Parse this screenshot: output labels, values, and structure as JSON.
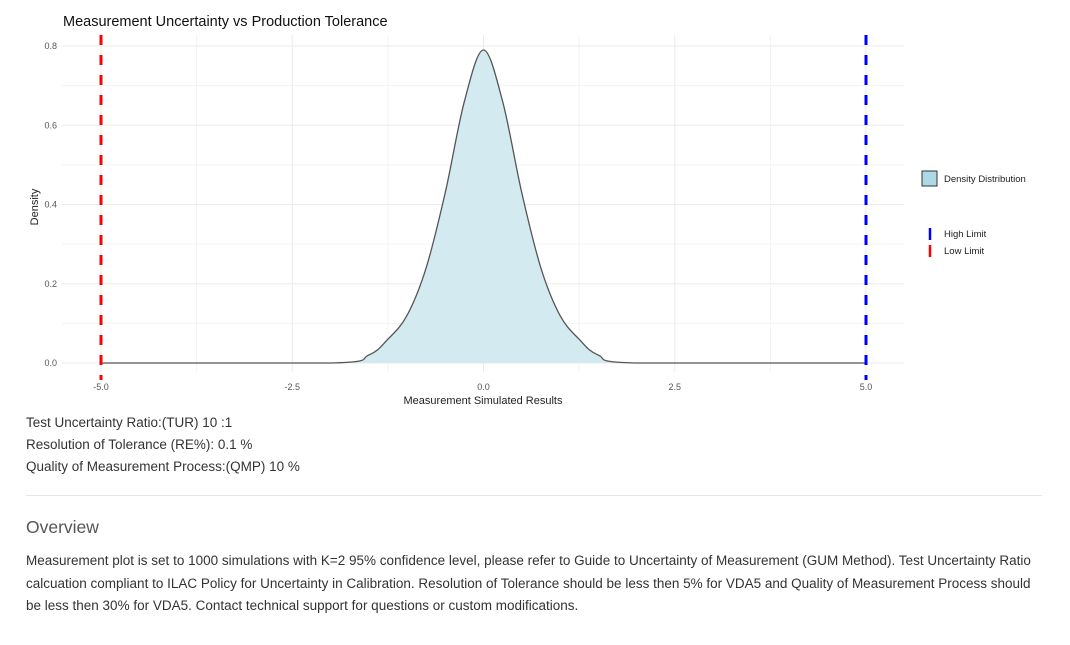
{
  "chart_data": {
    "type": "area",
    "title": "Measurement Uncertainty vs Production Tolerance",
    "xlabel": "Measurement Simulated Results",
    "ylabel": "Density",
    "xlim": [
      -5.0,
      5.0
    ],
    "ylim": [
      0.0,
      0.8
    ],
    "x_ticks": [
      "-5.0",
      "-2.5",
      "0.0",
      "2.5",
      "5.0"
    ],
    "y_ticks": [
      "0.0",
      "0.2",
      "0.4",
      "0.6",
      "0.8"
    ],
    "grid": true,
    "legend_position": "right",
    "density": {
      "name": "Density Distribution",
      "fill": "#d3eaf0",
      "line": "#555555",
      "x": [
        -5.0,
        -2.0,
        -1.5,
        -1.25,
        -1.0,
        -0.75,
        -0.5,
        -0.25,
        0.0,
        0.25,
        0.5,
        0.75,
        1.0,
        1.25,
        1.5,
        2.0,
        5.0
      ],
      "y": [
        0.0,
        0.0,
        0.02,
        0.06,
        0.12,
        0.24,
        0.43,
        0.66,
        0.79,
        0.66,
        0.43,
        0.24,
        0.12,
        0.06,
        0.02,
        0.0,
        0.0
      ]
    },
    "limits": [
      {
        "name": "High Limit",
        "x": 5.0,
        "color": "#0000ff"
      },
      {
        "name": "Low Limit",
        "x": -5.0,
        "color": "#ff0000"
      }
    ]
  },
  "stats": {
    "tur": "Test Uncertainty Ratio:(TUR) 10 :1",
    "re": "Resolution of Tolerance (RE%): 0.1 %",
    "qmp": "Quality of Measurement Process:(QMP) 10 %"
  },
  "overview": {
    "title": "Overview",
    "text": "Measurement plot is set to 1000 simulations with K=2 95% confidence level, please refer to Guide to Uncertainty of Measurement (GUM Method). Test Uncertainty Ratio calcuation compliant to ILAC Policy for Uncertainty in Calibration. Resolution of Tolerance should be less then 5% for VDA5 and Quality of Measurement Process should be less then 30% for VDA5. Contact technical support for questions or custom modifications."
  }
}
